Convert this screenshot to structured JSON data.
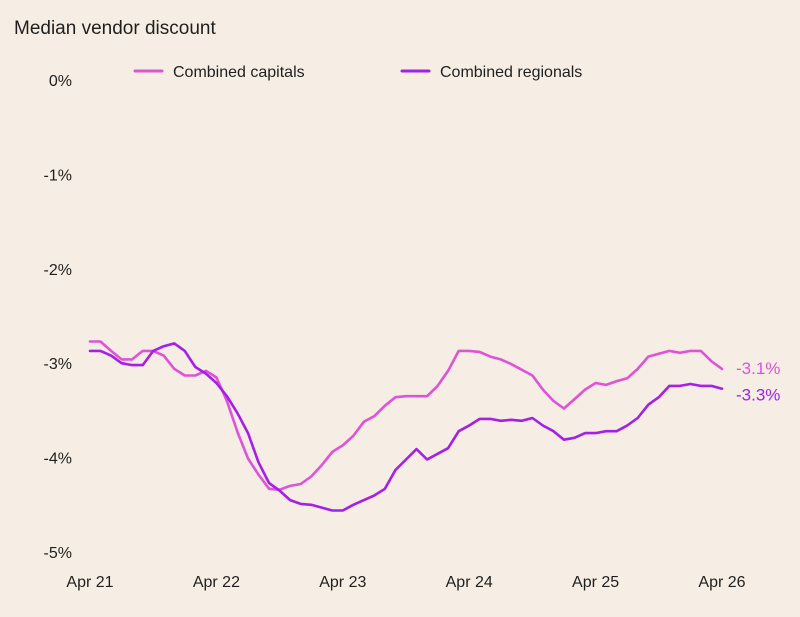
{
  "chart_data": {
    "type": "line",
    "ylabel": "Median vendor discount",
    "ylim": [
      -5,
      0
    ],
    "yticks": [
      "0%",
      "-1%",
      "-2%",
      "-3%",
      "-4%",
      "-5%"
    ],
    "ytick_values": [
      0,
      -1,
      -2,
      -3,
      -4,
      -5
    ],
    "xticks": [
      "Apr 21",
      "Apr 22",
      "Apr 23",
      "Apr 24",
      "Apr 25",
      "Apr 26"
    ],
    "x_domain_months": [
      0,
      60
    ],
    "grid": false,
    "legend": "top",
    "series": [
      {
        "name": "Combined capitals",
        "color": "#e052d8",
        "end_label": "-3.1%",
        "values": [
          -2.77,
          -2.77,
          -2.87,
          -2.96,
          -2.96,
          -2.87,
          -2.87,
          -2.92,
          -3.06,
          -3.13,
          -3.13,
          -3.08,
          -3.15,
          -3.4,
          -3.73,
          -4.01,
          -4.18,
          -4.33,
          -4.34,
          -4.3,
          -4.28,
          -4.2,
          -4.08,
          -3.94,
          -3.87,
          -3.77,
          -3.62,
          -3.56,
          -3.45,
          -3.36,
          -3.35,
          -3.35,
          -3.35,
          -3.24,
          -3.08,
          -2.87,
          -2.87,
          -2.88,
          -2.93,
          -2.96,
          -3.01,
          -3.07,
          -3.13,
          -3.28,
          -3.4,
          -3.48,
          -3.38,
          -3.28,
          -3.21,
          -3.23,
          -3.19,
          -3.16,
          -3.06,
          -2.93,
          -2.9,
          -2.87,
          -2.89,
          -2.87,
          -2.87,
          -2.98,
          -3.06
        ]
      },
      {
        "name": "Combined regionals",
        "color": "#a61ee8",
        "end_label": "-3.3%",
        "values": [
          -2.87,
          -2.87,
          -2.92,
          -3.0,
          -3.02,
          -3.02,
          -2.87,
          -2.82,
          -2.79,
          -2.87,
          -3.04,
          -3.11,
          -3.21,
          -3.35,
          -3.53,
          -3.74,
          -4.05,
          -4.27,
          -4.35,
          -4.45,
          -4.49,
          -4.5,
          -4.53,
          -4.56,
          -4.56,
          -4.5,
          -4.45,
          -4.4,
          -4.33,
          -4.13,
          -4.02,
          -3.91,
          -4.02,
          -3.96,
          -3.9,
          -3.72,
          -3.66,
          -3.59,
          -3.59,
          -3.61,
          -3.6,
          -3.61,
          -3.58,
          -3.66,
          -3.72,
          -3.81,
          -3.79,
          -3.74,
          -3.74,
          -3.72,
          -3.72,
          -3.66,
          -3.58,
          -3.44,
          -3.36,
          -3.24,
          -3.24,
          -3.22,
          -3.24,
          -3.24,
          -3.27
        ]
      }
    ]
  }
}
